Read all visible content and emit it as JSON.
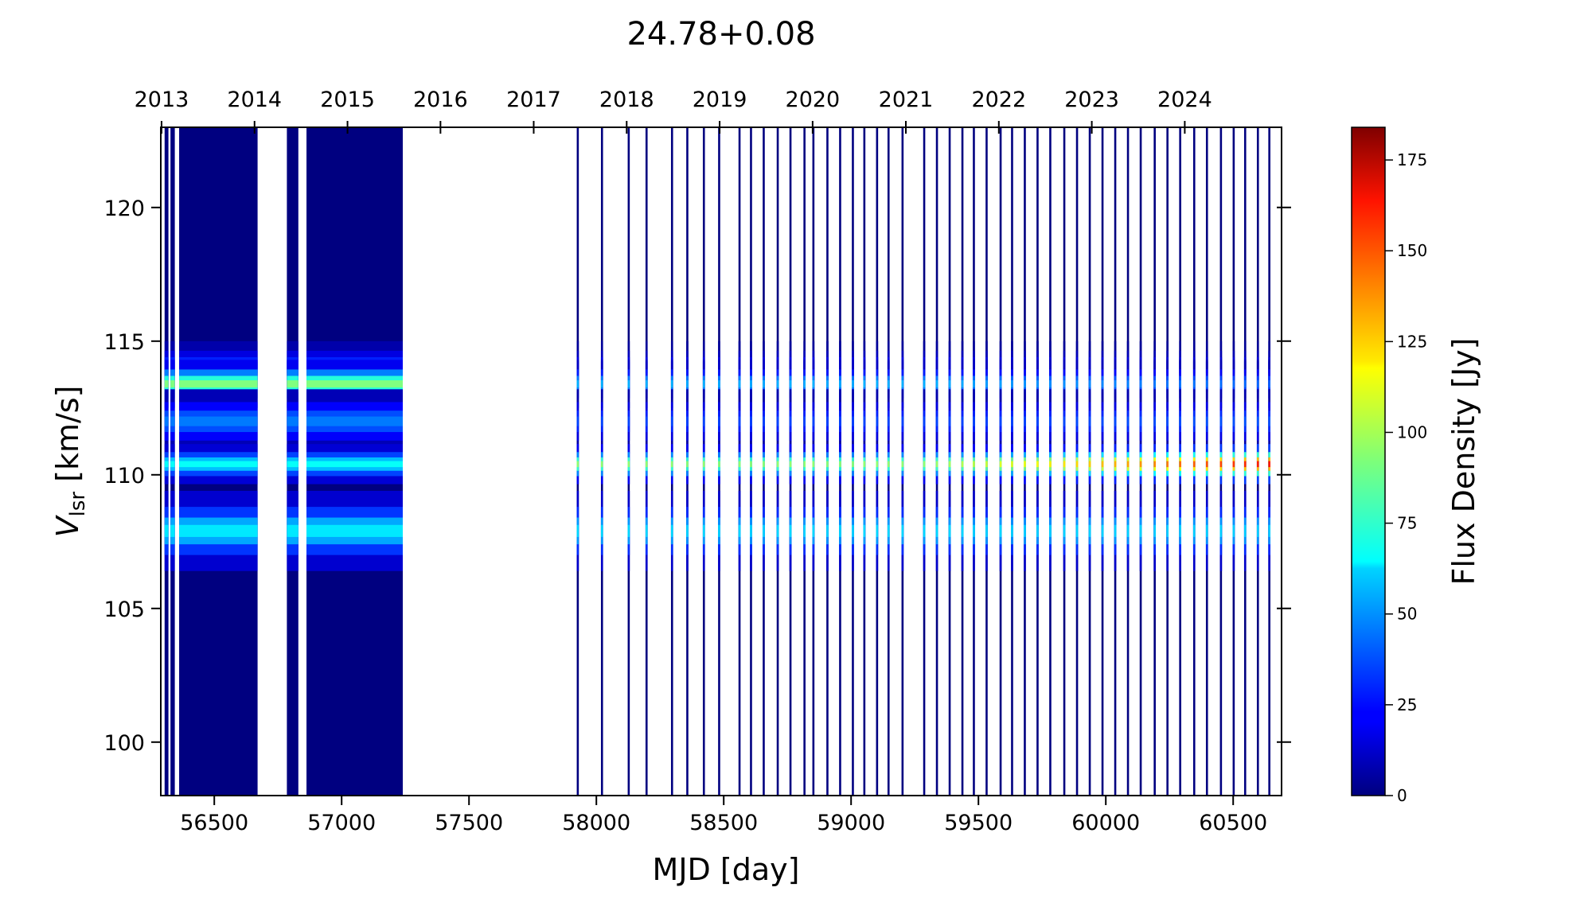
{
  "chart_data": {
    "type": "heatmap",
    "title": "24.78+0.08",
    "xlabel": "MJD [day]",
    "ylabel": {
      "main": "V",
      "sub": "lsr",
      "suffix": " [km/s]"
    },
    "colorbar_label": "Flux Density [Jy]",
    "colormap": "jet",
    "xlim": [
      56290,
      60690
    ],
    "ylim": [
      98,
      123
    ],
    "clim": [
      0,
      184
    ],
    "x_ticks": [
      "56500",
      "57000",
      "57500",
      "58000",
      "58500",
      "59000",
      "59500",
      "60000",
      "60500"
    ],
    "y_ticks": [
      "100",
      "105",
      "110",
      "115",
      "120"
    ],
    "colorbar_ticks": [
      "0",
      "25",
      "50",
      "75",
      "100",
      "125",
      "150",
      "175"
    ],
    "top_axis": {
      "label": "",
      "years": [
        "2013",
        "2014",
        "2015",
        "2016",
        "2017",
        "2018",
        "2019",
        "2020",
        "2021",
        "2022",
        "2023",
        "2024"
      ],
      "year_start_mjd": [
        56293,
        56658,
        57023,
        57388,
        57754,
        58119,
        58484,
        58849,
        59215,
        59580,
        59945,
        60310
      ]
    },
    "observation_blocks_mjd": [
      [
        56305,
        56320
      ],
      [
        56328,
        56345
      ],
      [
        56362,
        56670
      ],
      [
        56785,
        56830
      ],
      [
        56862,
        57240
      ]
    ],
    "observation_epochs_mjd": [
      57925,
      58020,
      58125,
      58195,
      58295,
      58355,
      58420,
      58480,
      58560,
      58605,
      58655,
      58710,
      58760,
      58815,
      58850,
      58905,
      58955,
      59005,
      59050,
      59100,
      59145,
      59200,
      59285,
      59335,
      59385,
      59435,
      59480,
      59530,
      59585,
      59630,
      59680,
      59730,
      59780,
      59835,
      59885,
      59935,
      59985,
      60035,
      60085,
      60135,
      60190,
      60240,
      60290,
      60345,
      60395,
      60450,
      60500,
      60545,
      60595,
      60640
    ],
    "series": [
      {
        "velocity": 114.1,
        "width": 0.3,
        "flux_early": 35,
        "flux_mid": 22,
        "flux_late": 18
      },
      {
        "velocity": 113.4,
        "width": 0.3,
        "flux_early": 92,
        "flux_mid": 55,
        "flux_late": 40
      },
      {
        "velocity": 112.0,
        "width": 0.4,
        "flux_early": 45,
        "flux_mid": 35,
        "flux_late": 38
      },
      {
        "velocity": 110.4,
        "width": 0.25,
        "flux_early": 70,
        "flux_mid": 95,
        "flux_late": 160
      },
      {
        "velocity": 107.9,
        "width": 0.5,
        "flux_early": 65,
        "flux_mid": 62,
        "flux_late": 60
      }
    ]
  }
}
